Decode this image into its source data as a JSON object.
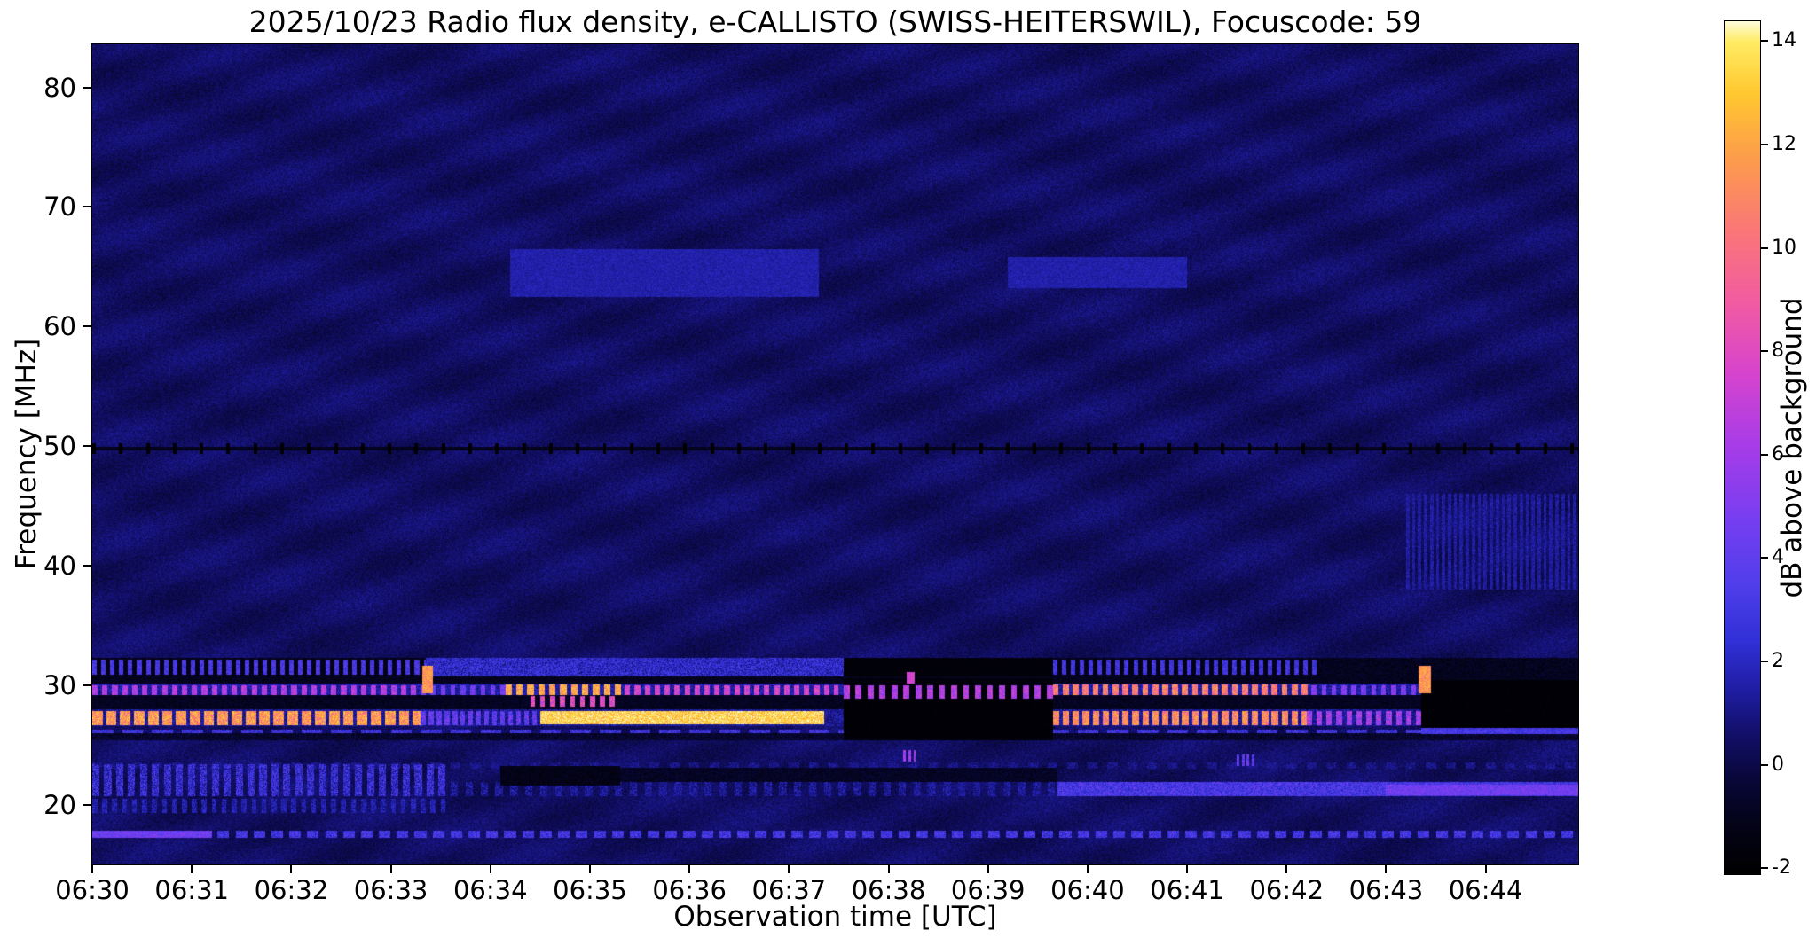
{
  "chart_data": {
    "type": "heatmap",
    "title": "2025/10/23  Radio flux density, e-CALLISTO (SWISS-HEITERSWIL), Focuscode: 59",
    "xlabel": "Observation time [UTC]",
    "ylabel": "Frequency [MHz]",
    "x_tick_labels": [
      "06:30",
      "06:31",
      "06:32",
      "06:33",
      "06:34",
      "06:35",
      "06:36",
      "06:37",
      "06:38",
      "06:39",
      "06:40",
      "06:41",
      "06:42",
      "06:43",
      "06:44"
    ],
    "x_tick_minutes": [
      0,
      1,
      2,
      3,
      4,
      5,
      6,
      7,
      8,
      9,
      10,
      11,
      12,
      13,
      14
    ],
    "xlim_minutes": [
      0,
      14.93
    ],
    "ylim_mhz": [
      15,
      83.6
    ],
    "y_ticks_mhz": [
      20,
      30,
      40,
      50,
      60,
      70,
      80
    ],
    "grid": false,
    "legend": "none",
    "colorbar": {
      "label": "dB above background",
      "ticks": [
        14,
        12,
        10,
        8,
        6,
        4,
        2,
        0,
        -2
      ],
      "vmin": -2.1,
      "vmax": 14.4
    },
    "colormap_stops": [
      [
        -2.1,
        0,
        0,
        0
      ],
      [
        -1.2,
        4,
        3,
        22
      ],
      [
        -0.3,
        8,
        7,
        55
      ],
      [
        0.6,
        18,
        15,
        105
      ],
      [
        1.5,
        32,
        30,
        165
      ],
      [
        2.4,
        48,
        48,
        215
      ],
      [
        3.5,
        80,
        62,
        235
      ],
      [
        4.8,
        120,
        62,
        240
      ],
      [
        6.2,
        168,
        60,
        232
      ],
      [
        7.6,
        215,
        68,
        205
      ],
      [
        9.0,
        242,
        92,
        160
      ],
      [
        10.4,
        250,
        120,
        118
      ],
      [
        11.8,
        253,
        158,
        74
      ],
      [
        13.0,
        255,
        200,
        48
      ],
      [
        14.0,
        255,
        236,
        100
      ],
      [
        14.4,
        253,
        252,
        222
      ]
    ],
    "background": {
      "base_db": 0.45,
      "noise_db": 1.1,
      "ripple1_amp": 0.22,
      "ripple1_x": 0.043,
      "ripple1_y": 0.11,
      "ripple2_amp": 0.18,
      "ripple2_x": 0.016,
      "ripple2_y": 0.055
    },
    "features": [
      {
        "desc": "faint brightening near 64 MHz",
        "f": [
          62.5,
          66.5
        ],
        "t": [
          4.2,
          7.3
        ],
        "v": 1.6,
        "nz": 0.5,
        "mode": "max"
      },
      {
        "desc": "faint brightening near 64 MHz second",
        "f": [
          63.2,
          65.8
        ],
        "t": [
          9.2,
          11.0
        ],
        "v": 1.6,
        "nz": 0.5,
        "mode": "max"
      },
      {
        "desc": "faint noise 38-46 MHz far right",
        "f": [
          38,
          46
        ],
        "t": [
          13.2,
          14.93
        ],
        "v": 1.4,
        "nz": 0.7,
        "dash": 0.06,
        "duty": 0.55,
        "mode": "max"
      },
      {
        "desc": "mottled blue band 21-23.4 MHz",
        "f": [
          20.7,
          23.4
        ],
        "t": [
          0,
          3.6
        ],
        "v": 2.4,
        "nz": 1.7,
        "dash": 0.12,
        "duty": 0.6,
        "mode": "max"
      },
      {
        "desc": "faint dashes 19.3-20.5 MHz",
        "f": [
          19.3,
          20.5
        ],
        "t": [
          0,
          3.6
        ],
        "v": 1.6,
        "nz": 1.0,
        "dash": 0.1,
        "duty": 0.5,
        "mode": "max"
      },
      {
        "desc": "faint line 23-23.5 MHz",
        "f": [
          23.0,
          23.5
        ],
        "t": [
          0,
          14.93
        ],
        "v": 1.0,
        "nz": 0.8,
        "dash": 0.2,
        "duty": 0.5,
        "mode": "max"
      },
      {
        "desc": "faint band 20.7-21.9 MHz mid",
        "f": [
          20.7,
          21.9
        ],
        "t": [
          3.6,
          9.7
        ],
        "v": 1.2,
        "nz": 1.2,
        "dash": 0.15,
        "duty": 0.5,
        "mode": "max"
      },
      {
        "desc": "blue band 20.7-21.9 MHz right",
        "f": [
          20.7,
          21.9
        ],
        "t": [
          9.7,
          14.93
        ],
        "v": 3.2,
        "nz": 1.4,
        "mode": "max"
      },
      {
        "desc": "brighter 21 MHz band at end",
        "f": [
          20.8,
          21.7
        ],
        "t": [
          13.0,
          14.93
        ],
        "v": 4.5,
        "nz": 1.2,
        "mode": "max"
      },
      {
        "desc": "dashed line 17.5 MHz",
        "f": [
          17.25,
          17.85
        ],
        "t": [
          0,
          14.93
        ],
        "v": 3.0,
        "nz": 1.3,
        "dash": 0.18,
        "duty": 0.65,
        "mode": "max"
      },
      {
        "desc": "bright start of 17.5 MHz line",
        "f": [
          17.25,
          17.85
        ],
        "t": [
          0,
          1.2
        ],
        "v": 4.5,
        "nz": 1.2,
        "mode": "max"
      },
      {
        "desc": "dark lane 25.4-26 MHz",
        "f": [
          25.35,
          25.95
        ],
        "t": [
          0,
          14.93
        ],
        "v": -0.6,
        "nz": 0.8,
        "mode": "set"
      },
      {
        "desc": "blue line 26 MHz",
        "f": [
          25.95,
          26.3
        ],
        "t": [
          0,
          14.93
        ],
        "v": 2.8,
        "nz": 1.2,
        "dash": 0.3,
        "duty": 0.7,
        "mode": "max"
      },
      {
        "desc": "dark lane 28-29.1 MHz",
        "f": [
          28.0,
          29.15
        ],
        "t": [
          0,
          14.93
        ],
        "v": -0.9,
        "nz": 0.7,
        "mode": "set"
      },
      {
        "desc": "dark lane 30.2-30.7 MHz",
        "f": [
          30.15,
          30.7
        ],
        "t": [
          0,
          14.93
        ],
        "v": -1.0,
        "nz": 0.5,
        "mode": "set"
      },
      {
        "desc": "27 MHz band base",
        "f": [
          26.55,
          27.95
        ],
        "t": [
          0,
          14.93
        ],
        "v": 1.2,
        "nz": 1.0,
        "mode": "set"
      },
      {
        "desc": "27 MHz orange segment left",
        "f": [
          26.65,
          27.85
        ],
        "t": [
          0,
          3.3
        ],
        "v": 11.5,
        "nz": 2.2,
        "dash": 0.14,
        "duty": 0.75,
        "mode": "max"
      },
      {
        "desc": "27 MHz blue columns",
        "f": [
          26.65,
          27.85
        ],
        "t": [
          3.3,
          4.5
        ],
        "v": 4.0,
        "nz": 1.8,
        "dash": 0.08,
        "duty": 0.6,
        "mode": "max"
      },
      {
        "desc": "27 MHz brightest yellow segment",
        "f": [
          26.7,
          27.8
        ],
        "t": [
          4.5,
          7.35
        ],
        "v": 13.3,
        "nz": 1.4,
        "mode": "max"
      },
      {
        "desc": "27 MHz orange dashes right",
        "f": [
          26.65,
          27.85
        ],
        "t": [
          9.65,
          12.2
        ],
        "v": 11.0,
        "nz": 2.0,
        "dash": 0.1,
        "duty": 0.65,
        "mode": "max"
      },
      {
        "desc": "27 MHz fading dashes",
        "f": [
          26.65,
          27.85
        ],
        "t": [
          12.2,
          13.35
        ],
        "v": 6.0,
        "nz": 2.0,
        "dash": 0.1,
        "duty": 0.55,
        "mode": "max"
      },
      {
        "desc": "pink patch 28.2-29.1 MHz",
        "f": [
          28.2,
          29.1
        ],
        "t": [
          4.4,
          5.3
        ],
        "v": 8.0,
        "nz": 2.0,
        "dash": 0.1,
        "duty": 0.5,
        "mode": "max"
      },
      {
        "desc": "29.5 MHz band base",
        "f": [
          29.15,
          30.15
        ],
        "t": [
          0,
          14.93
        ],
        "v": 1.5,
        "nz": 1.0,
        "mode": "set"
      },
      {
        "desc": "29.5 MHz pink dashes left",
        "f": [
          29.2,
          30.0
        ],
        "t": [
          0,
          3.3
        ],
        "v": 6.5,
        "nz": 1.5,
        "dash": 0.1,
        "duty": 0.55,
        "mode": "max"
      },
      {
        "desc": "29.5 MHz dimmer dashes",
        "f": [
          29.2,
          30.0
        ],
        "t": [
          3.3,
          4.15
        ],
        "v": 4.5,
        "nz": 1.5,
        "dash": 0.1,
        "duty": 0.5,
        "mode": "max"
      },
      {
        "desc": "29.5 MHz orange dashes",
        "f": [
          29.2,
          30.05
        ],
        "t": [
          4.15,
          5.35
        ],
        "v": 12.0,
        "nz": 1.8,
        "dash": 0.11,
        "duty": 0.6,
        "mode": "max"
      },
      {
        "desc": "29.5 MHz pink dashes mid",
        "f": [
          29.2,
          30.0
        ],
        "t": [
          5.35,
          7.5
        ],
        "v": 7.5,
        "nz": 1.5,
        "dash": 0.1,
        "duty": 0.55,
        "mode": "max"
      },
      {
        "desc": "29.5 MHz orange dashes right",
        "f": [
          29.2,
          30.05
        ],
        "t": [
          9.65,
          12.25
        ],
        "v": 10.5,
        "nz": 2.0,
        "dash": 0.1,
        "duty": 0.6,
        "mode": "max"
      },
      {
        "desc": "29.5 MHz fading dashes",
        "f": [
          29.2,
          30.0
        ],
        "t": [
          12.25,
          13.3
        ],
        "v": 5.0,
        "nz": 1.5,
        "dash": 0.1,
        "duty": 0.5,
        "mode": "max"
      },
      {
        "desc": "31-32 MHz dark base left",
        "f": [
          30.7,
          32.3
        ],
        "t": [
          0,
          3.35
        ],
        "v": -1.2,
        "nz": 0.5,
        "mode": "set"
      },
      {
        "desc": "31-32 MHz blue dashes left",
        "f": [
          30.9,
          32.1
        ],
        "t": [
          0,
          3.35
        ],
        "v": 3.2,
        "nz": 1.2,
        "dash": 0.09,
        "duty": 0.5,
        "mode": "max"
      },
      {
        "desc": "31-32 MHz blue fill",
        "f": [
          30.7,
          32.3
        ],
        "t": [
          3.35,
          7.55
        ],
        "v": 2.2,
        "nz": 1.4,
        "mode": "set"
      },
      {
        "desc": "31-32 MHz dark base right",
        "f": [
          30.7,
          32.3
        ],
        "t": [
          9.65,
          12.3
        ],
        "v": -1.2,
        "nz": 0.5,
        "mode": "set"
      },
      {
        "desc": "31-32 MHz blue dashes right",
        "f": [
          30.9,
          32.1
        ],
        "t": [
          9.65,
          12.3
        ],
        "v": 3.0,
        "nz": 1.2,
        "dash": 0.09,
        "duty": 0.5,
        "mode": "max"
      },
      {
        "desc": "31-32 MHz dark tail",
        "f": [
          30.7,
          32.3
        ],
        "t": [
          12.3,
          14.93
        ],
        "v": -1.0,
        "nz": 0.8,
        "mode": "set"
      },
      {
        "desc": "black gap 06:37.5-06:39.6 low band",
        "f": [
          25.35,
          28.7
        ],
        "t": [
          7.55,
          9.65
        ],
        "v": -1.85,
        "nz": 0.15,
        "mode": "set"
      },
      {
        "desc": "dark zone under 29.5 dashes",
        "f": [
          28.7,
          30.6
        ],
        "t": [
          7.55,
          9.65
        ],
        "v": -1.6,
        "nz": 0.2,
        "mode": "set"
      },
      {
        "desc": "dark zone 31-32 mid",
        "f": [
          30.7,
          32.3
        ],
        "t": [
          7.55,
          9.65
        ],
        "v": -1.7,
        "nz": 0.2,
        "mode": "set"
      },
      {
        "desc": "dark patch 22-23 MHz at 06:34",
        "f": [
          21.6,
          23.2
        ],
        "t": [
          4.1,
          5.3
        ],
        "v": -1.2,
        "nz": 0.6,
        "mode": "set"
      },
      {
        "desc": "dark band 22-23 MHz mid",
        "f": [
          21.9,
          23.1
        ],
        "t": [
          5.3,
          9.7
        ],
        "v": -0.8,
        "nz": 0.7,
        "mode": "set"
      },
      {
        "desc": "black box far right 26-30 MHz",
        "f": [
          26.3,
          30.45
        ],
        "t": [
          13.35,
          14.93
        ],
        "v": -1.85,
        "nz": 0.15,
        "mode": "set"
      },
      {
        "desc": "29.5 MHz dashes over dark gap",
        "f": [
          28.9,
          30.0
        ],
        "t": [
          7.55,
          9.65
        ],
        "v": 6.5,
        "nz": 1.8,
        "dash": 0.12,
        "duty": 0.5,
        "mode": "max"
      },
      {
        "desc": "blue 26 MHz line over right black box",
        "f": [
          25.9,
          26.4
        ],
        "t": [
          13.35,
          14.93
        ],
        "v": 3.0,
        "nz": 1.0,
        "mode": "max"
      },
      {
        "desc": "50 MHz interference line",
        "f": [
          49.65,
          49.95
        ],
        "t": [
          0,
          14.93
        ],
        "v": -1.0,
        "nz": 0.4,
        "mode": "set"
      },
      {
        "desc": "50 MHz black tick marks",
        "f": [
          49.35,
          50.25
        ],
        "t": [
          0,
          14.93
        ],
        "v": -2.0,
        "nz": 0.1,
        "dash": 0.27,
        "duty": 0.13,
        "mode": "set"
      },
      {
        "desc": "orange blip at 06:33.3",
        "f": [
          29.3,
          31.6
        ],
        "t": [
          3.32,
          3.42
        ],
        "v": 11.5,
        "nz": 1.5,
        "mode": "max"
      },
      {
        "desc": "orange blip at 06:43.3",
        "f": [
          29.3,
          31.6
        ],
        "t": [
          13.33,
          13.45
        ],
        "v": 11.5,
        "nz": 1.5,
        "mode": "max"
      },
      {
        "desc": "pink blip 06:38.2 at 30.5 MHz",
        "f": [
          30.1,
          31.1
        ],
        "t": [
          8.18,
          8.26
        ],
        "v": 7.5,
        "nz": 1.0,
        "mode": "max"
      },
      {
        "desc": "pink dots 06:38.2 at 24 MHz",
        "f": [
          23.6,
          24.6
        ],
        "t": [
          8.15,
          8.3
        ],
        "v": 6.0,
        "nz": 1.5,
        "dash": 0.05,
        "duty": 0.5,
        "mode": "max"
      },
      {
        "desc": "faint dots 06:41.6 at 23.5 MHz",
        "f": [
          23.2,
          24.2
        ],
        "t": [
          11.5,
          11.7
        ],
        "v": 4.0,
        "nz": 1.5,
        "dash": 0.05,
        "duty": 0.5,
        "mode": "max"
      }
    ]
  }
}
